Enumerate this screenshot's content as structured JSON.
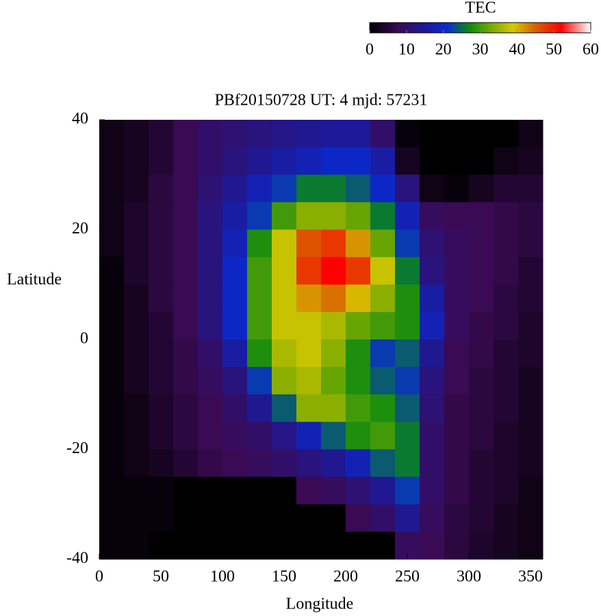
{
  "chart_data": {
    "type": "heatmap",
    "title": "PBf20150728  UT: 4  mjd: 57231",
    "x_label": "Longitude",
    "y_label": "Latitude",
    "colorbar_title": "TEC",
    "xlim": [
      0,
      360
    ],
    "xticks": [
      0,
      50,
      100,
      150,
      200,
      250,
      300,
      350
    ],
    "ylim": [
      -40,
      40
    ],
    "yticks": [
      -40,
      -20,
      0,
      20,
      40
    ],
    "zlim": [
      0,
      60
    ],
    "zticks": [
      0,
      10,
      20,
      30,
      40,
      50,
      60
    ],
    "colormap": [
      {
        "value": 0,
        "color": "#000000"
      },
      {
        "value": 8,
        "color": "#3a0a55"
      },
      {
        "value": 15,
        "color": "#1c1a9a"
      },
      {
        "value": 21,
        "color": "#0a2ad0"
      },
      {
        "value": 27,
        "color": "#0a8a10"
      },
      {
        "value": 33,
        "color": "#7aaa00"
      },
      {
        "value": 39,
        "color": "#d8c800"
      },
      {
        "value": 45,
        "color": "#d86000"
      },
      {
        "value": 52,
        "color": "#ff0000"
      },
      {
        "value": 60,
        "color": "#ffffff"
      }
    ],
    "x": [
      10,
      30,
      50,
      70,
      90,
      110,
      130,
      150,
      170,
      190,
      210,
      230,
      250,
      270,
      290,
      310,
      330,
      350
    ],
    "y": [
      37.5,
      32.5,
      27.5,
      22.5,
      17.5,
      12.5,
      7.5,
      2.5,
      -2.5,
      -7.5,
      -12.5,
      -17.5,
      -22.5,
      -27.5,
      -32.5,
      -37.5
    ],
    "z": [
      [
        2,
        3,
        5,
        8,
        10,
        11,
        12,
        13,
        14,
        15,
        15,
        10,
        1,
        0,
        0,
        0,
        0,
        2
      ],
      [
        2,
        3,
        5,
        8,
        10,
        12,
        14,
        16,
        18,
        20,
        20,
        16,
        3,
        0,
        0,
        0,
        2,
        3
      ],
      [
        2,
        3,
        6,
        8,
        11,
        14,
        18,
        22,
        26,
        26,
        24,
        20,
        12,
        2,
        1,
        3,
        5,
        5
      ],
      [
        2,
        4,
        6,
        8,
        12,
        16,
        22,
        30,
        34,
        34,
        32,
        26,
        18,
        9,
        8,
        8,
        7,
        6
      ],
      [
        2,
        4,
        6,
        8,
        12,
        18,
        28,
        38,
        46,
        48,
        42,
        32,
        22,
        11,
        9,
        8,
        7,
        6
      ],
      [
        1,
        4,
        6,
        8,
        12,
        20,
        30,
        38,
        48,
        52,
        48,
        38,
        26,
        12,
        9,
        8,
        7,
        5
      ],
      [
        1,
        3,
        6,
        8,
        12,
        20,
        30,
        38,
        42,
        44,
        40,
        34,
        28,
        16,
        9,
        8,
        6,
        5
      ],
      [
        1,
        3,
        5,
        8,
        12,
        20,
        30,
        38,
        38,
        36,
        32,
        30,
        28,
        18,
        9,
        7,
        6,
        4
      ],
      [
        1,
        3,
        5,
        7,
        10,
        16,
        28,
        36,
        38,
        34,
        28,
        22,
        24,
        14,
        8,
        7,
        5,
        4
      ],
      [
        1,
        3,
        5,
        7,
        9,
        12,
        22,
        34,
        36,
        32,
        28,
        24,
        22,
        12,
        8,
        6,
        5,
        3
      ],
      [
        1,
        2,
        4,
        6,
        8,
        10,
        14,
        24,
        34,
        34,
        30,
        28,
        24,
        11,
        7,
        6,
        5,
        3
      ],
      [
        1,
        2,
        4,
        6,
        8,
        9,
        10,
        13,
        18,
        24,
        28,
        30,
        26,
        10,
        7,
        6,
        4,
        3
      ],
      [
        1,
        2,
        3,
        5,
        7,
        8,
        9,
        10,
        12,
        14,
        18,
        24,
        26,
        10,
        7,
        5,
        4,
        3
      ],
      [
        1,
        1,
        1,
        0,
        0,
        0,
        0,
        0,
        8,
        9,
        11,
        14,
        22,
        10,
        7,
        5,
        4,
        2
      ],
      [
        1,
        1,
        1,
        0,
        0,
        0,
        0,
        0,
        0,
        0,
        8,
        10,
        14,
        9,
        6,
        5,
        3,
        2
      ],
      [
        1,
        1,
        0,
        0,
        0,
        0,
        0,
        0,
        0,
        0,
        0,
        0,
        9,
        8,
        6,
        4,
        3,
        2
      ]
    ]
  }
}
